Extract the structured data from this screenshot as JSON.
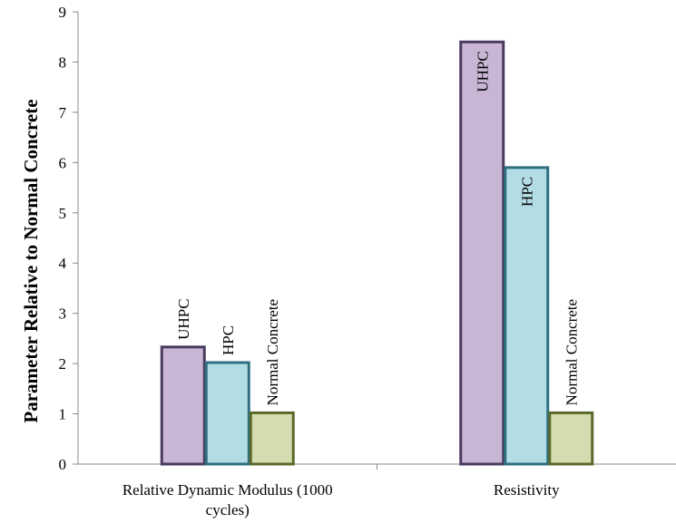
{
  "chart_data": {
    "type": "bar",
    "title": "",
    "xlabel": "",
    "ylabel": "Parameter Relative to Normal Concrete",
    "ylim": [
      0,
      9
    ],
    "yticks": [
      0,
      1,
      2,
      3,
      4,
      5,
      6,
      7,
      8,
      9
    ],
    "grid": false,
    "legend": "none",
    "categories": [
      [
        "Relative Dynamic Modulus (1000",
        "cycles)"
      ],
      [
        "Resistivity"
      ]
    ],
    "series": [
      {
        "name": "UHPC",
        "values": [
          2.33,
          8.4
        ],
        "color": "#c9b6d4",
        "edge": "#4a3a5e"
      },
      {
        "name": "HPC",
        "values": [
          2.02,
          5.9
        ],
        "color": "#b3dde5",
        "edge": "#2e6f80"
      },
      {
        "name": "Normal Concrete",
        "values": [
          1.02,
          1.02
        ],
        "color": "#d4dcb0",
        "edge": "#5a6a2a"
      }
    ]
  }
}
